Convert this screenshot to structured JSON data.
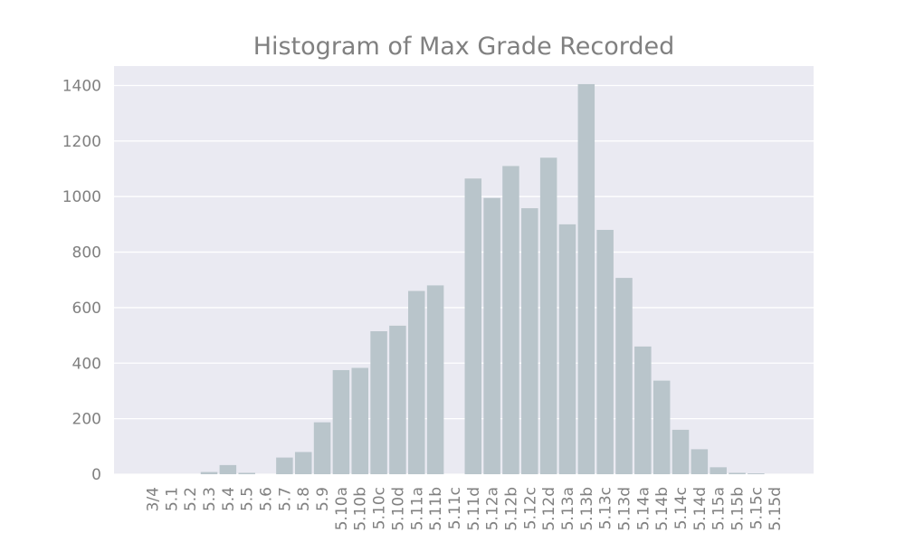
{
  "chart_data": {
    "type": "bar",
    "title": "Histogram of Max Grade Recorded",
    "xlabel": "",
    "ylabel": "",
    "ylim": [
      0,
      1470
    ],
    "yticks": [
      0,
      200,
      400,
      600,
      800,
      1000,
      1200,
      1400
    ],
    "grid": true,
    "categories": [
      "3/4",
      "5.1",
      "5.2",
      "5.3",
      "5.4",
      "5.5",
      "5.6",
      "5.7",
      "5.8",
      "5.9",
      "5.10a",
      "5.10b",
      "5.10c",
      "5.10d",
      "5.11a",
      "5.11b",
      "5.11c",
      "5.11d",
      "5.12a",
      "5.12b",
      "5.12c",
      "5.12d",
      "5.13a",
      "5.13b",
      "5.13c",
      "5.13d",
      "5.14a",
      "5.14b",
      "5.14c",
      "5.14d",
      "5.15a",
      "5.15b",
      "5.15c",
      "5.15d"
    ],
    "values": [
      0,
      0,
      0,
      8,
      33,
      5,
      0,
      60,
      80,
      187,
      375,
      383,
      515,
      535,
      660,
      680,
      0,
      1065,
      995,
      1110,
      958,
      1140,
      900,
      1405,
      880,
      707,
      460,
      337,
      160,
      90,
      25,
      5,
      3,
      0
    ]
  },
  "colors": {
    "bar": "#b9c5cb",
    "axes_bg": "#eaeaf2",
    "grid": "#ffffff",
    "text": "#808080"
  }
}
